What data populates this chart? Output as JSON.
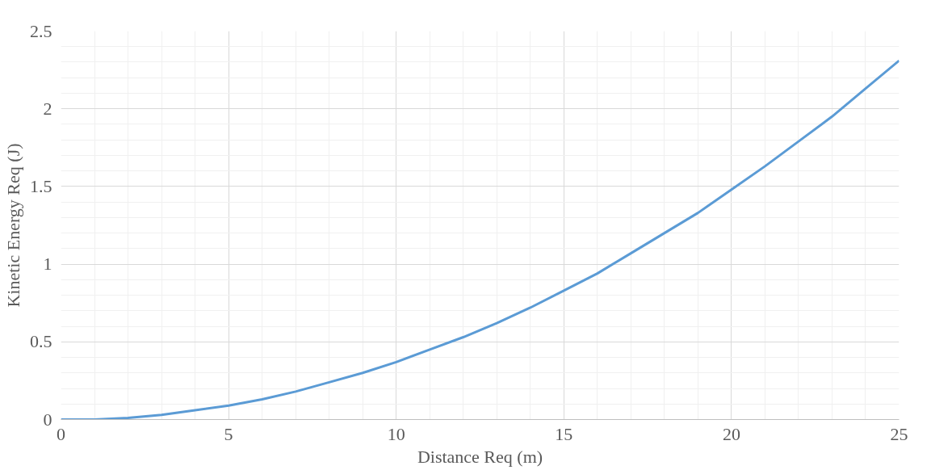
{
  "chart_data": {
    "type": "line",
    "xlabel": "Distance Req (m)",
    "ylabel": "Kinetic Energy Req (J)",
    "x": [
      0,
      1,
      2,
      3,
      4,
      5,
      6,
      7,
      8,
      9,
      10,
      11,
      12,
      13,
      14,
      15,
      16,
      17,
      18,
      19,
      20,
      21,
      22,
      23,
      24,
      25
    ],
    "series": [
      {
        "color": "#5b9bd5",
        "values": [
          0,
          0.0,
          0.01,
          0.03,
          0.06,
          0.09,
          0.13,
          0.18,
          0.24,
          0.3,
          0.37,
          0.45,
          0.53,
          0.62,
          0.72,
          0.83,
          0.94,
          1.07,
          1.2,
          1.33,
          1.48,
          1.63,
          1.79,
          1.95,
          2.13,
          2.31
        ]
      }
    ],
    "xlim": [
      0,
      25
    ],
    "ylim": [
      0,
      2.5
    ],
    "xticks": [
      0,
      5,
      10,
      15,
      20,
      25
    ],
    "yticks": [
      0,
      0.5,
      1,
      1.5,
      2,
      2.5
    ],
    "grid": true,
    "line_style": "solid"
  }
}
